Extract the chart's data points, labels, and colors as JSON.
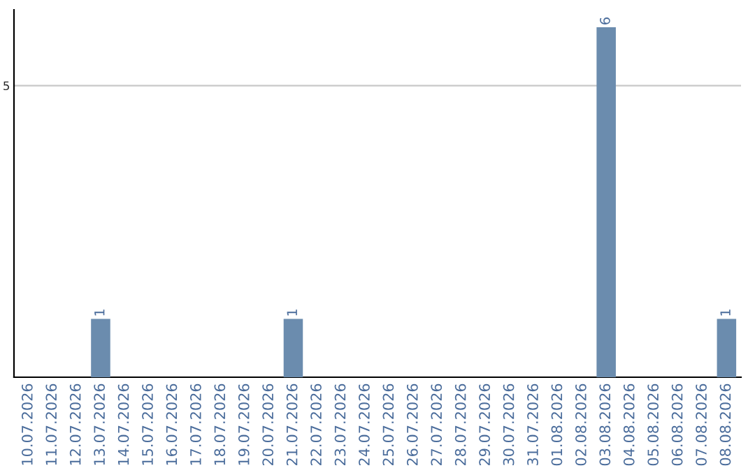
{
  "chart_data": {
    "type": "bar",
    "categories": [
      "10.07.2026",
      "11.07.2026",
      "12.07.2026",
      "13.07.2026",
      "14.07.2026",
      "15.07.2026",
      "16.07.2026",
      "17.07.2026",
      "18.07.2026",
      "19.07.2026",
      "20.07.2026",
      "21.07.2026",
      "22.07.2026",
      "23.07.2026",
      "24.07.2026",
      "25.07.2026",
      "26.07.2026",
      "27.07.2026",
      "28.07.2026",
      "29.07.2026",
      "30.07.2026",
      "31.07.2026",
      "01.08.2026",
      "02.08.2026",
      "03.08.2026",
      "04.08.2026",
      "05.08.2026",
      "06.08.2026",
      "07.08.2026",
      "08.08.2026"
    ],
    "values": [
      0,
      0,
      0,
      1,
      0,
      0,
      0,
      0,
      0,
      0,
      0,
      1,
      0,
      0,
      0,
      0,
      0,
      0,
      0,
      0,
      0,
      0,
      0,
      0,
      6,
      0,
      0,
      0,
      0,
      1
    ],
    "color": "#6b8cae",
    "value_labels": [
      null,
      null,
      null,
      "1",
      null,
      null,
      null,
      null,
      null,
      null,
      null,
      "1",
      null,
      null,
      null,
      null,
      null,
      null,
      null,
      null,
      null,
      null,
      null,
      null,
      "6",
      null,
      null,
      null,
      null,
      "1"
    ],
    "ylim": [
      0,
      6.3
    ],
    "yticks": [
      5
    ],
    "grid": "y"
  }
}
